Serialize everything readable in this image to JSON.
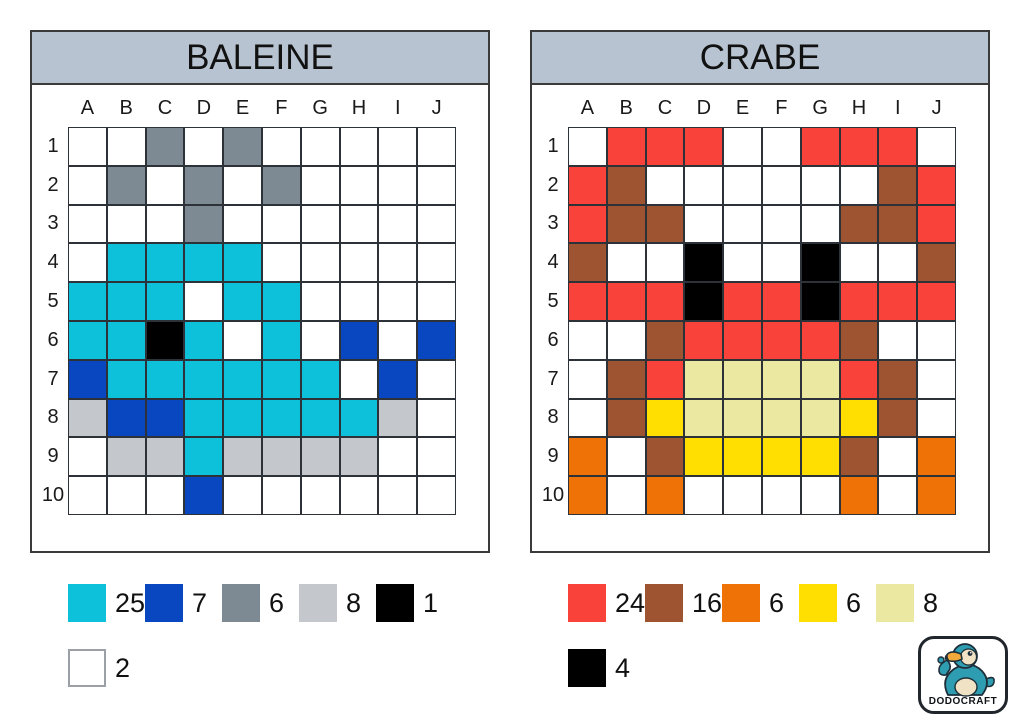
{
  "colors": {
    "white": "#ffffff",
    "cyan": "#0cc1d9",
    "blue": "#0847c0",
    "gray": "#7d8a93",
    "lightgray": "#c4c8cd",
    "black": "#000000",
    "red": "#f9423a",
    "brown": "#9e5430",
    "orange": "#ee7205",
    "yellow": "#ffdf02",
    "cream": "#ebe8a2",
    "titlebar": "#b7c3d0",
    "gridline": "#2d3138"
  },
  "cell_keys": {
    ".": "white",
    "c": "cyan",
    "b": "blue",
    "g": "gray",
    "l": "lightgray",
    "k": "black",
    "r": "red",
    "n": "brown",
    "o": "orange",
    "y": "yellow",
    "m": "cream"
  },
  "panels": [
    {
      "title": "BALEINE",
      "columns": [
        "A",
        "B",
        "C",
        "D",
        "E",
        "F",
        "G",
        "H",
        "I",
        "J"
      ],
      "rows": [
        "1",
        "2",
        "3",
        "4",
        "5",
        "6",
        "7",
        "8",
        "9",
        "10"
      ],
      "cells": [
        "..g.g.....",
        ".g.g.g....",
        "...g......",
        ".cccc.....",
        "ccc.cc....",
        "cckc.c.b.b",
        "bcccccc.b.",
        "lbbcccccl.",
        ".llcllll..",
        "...b......"
      ],
      "legend": [
        {
          "color": "cyan",
          "count": "25"
        },
        {
          "color": "blue",
          "count": "7"
        },
        {
          "color": "gray",
          "count": "6"
        },
        {
          "color": "lightgray",
          "count": "8"
        },
        {
          "color": "black",
          "count": "1"
        },
        {
          "color": "white",
          "count": "2"
        }
      ]
    },
    {
      "title": "CRABE",
      "columns": [
        "A",
        "B",
        "C",
        "D",
        "E",
        "F",
        "G",
        "H",
        "I",
        "J"
      ],
      "rows": [
        "1",
        "2",
        "3",
        "4",
        "5",
        "6",
        "7",
        "8",
        "9",
        "10"
      ],
      "cells": [
        ".rrr..rrr.",
        "rn......nr",
        "rnn....nnr",
        "n..k..k..n",
        "rrrkrrkrrr",
        "..nrrrrn..",
        ".nrmmmmrn.",
        ".nymmmmyn.",
        "o.nyyyyn.o",
        "o.o....o.o"
      ],
      "legend": [
        {
          "color": "red",
          "count": "24"
        },
        {
          "color": "brown",
          "count": "16"
        },
        {
          "color": "orange",
          "count": "6"
        },
        {
          "color": "yellow",
          "count": "6"
        },
        {
          "color": "cream",
          "count": "8"
        },
        {
          "color": "black",
          "count": "4"
        }
      ]
    }
  ],
  "logo": {
    "text": "DODOCRAFT"
  }
}
